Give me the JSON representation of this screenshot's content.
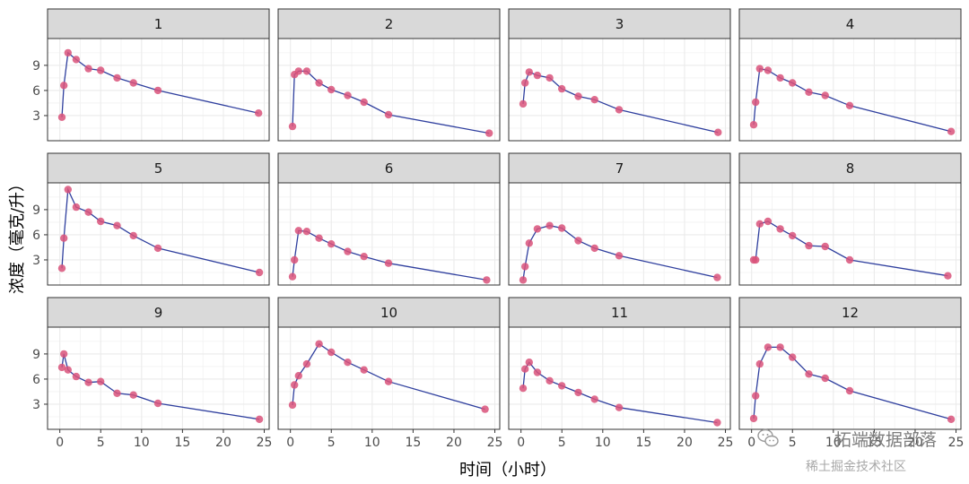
{
  "chart_data": {
    "type": "line",
    "facet_layout": {
      "rows": 3,
      "cols": 4
    },
    "xlabel": "时间（小时）",
    "ylabel": "浓度（毫克/升）",
    "xticks": [
      0,
      5,
      10,
      15,
      20,
      25
    ],
    "yticks": [
      3,
      6,
      9
    ],
    "xlim": [
      -1.5,
      25.6
    ],
    "ylim": [
      0,
      12.2
    ],
    "grid": true,
    "colors": {
      "line": "#2f3f9e",
      "point": "#d9527a",
      "strip_bg": "#d9d9d9",
      "border": "#333333",
      "grid": "#ebebeb"
    },
    "panels": [
      {
        "label": "1",
        "x": [
          0.25,
          0.5,
          1,
          2,
          3.5,
          5,
          7,
          9,
          12,
          24.3
        ],
        "y": [
          2.8,
          6.6,
          10.5,
          9.7,
          8.6,
          8.4,
          7.5,
          6.9,
          6.0,
          3.3
        ]
      },
      {
        "label": "2",
        "x": [
          0.25,
          0.5,
          1,
          2,
          3.5,
          5,
          7,
          9,
          12,
          24.3
        ],
        "y": [
          1.7,
          7.9,
          8.3,
          8.3,
          6.9,
          6.1,
          5.4,
          4.6,
          3.1,
          0.9
        ]
      },
      {
        "label": "3",
        "x": [
          0.25,
          0.5,
          1,
          2,
          3.5,
          5,
          7,
          9,
          12,
          24.1
        ],
        "y": [
          4.4,
          6.9,
          8.2,
          7.8,
          7.5,
          6.2,
          5.3,
          4.9,
          3.7,
          1.0
        ]
      },
      {
        "label": "4",
        "x": [
          0.25,
          0.5,
          1,
          2,
          3.5,
          5,
          7,
          9,
          12,
          24.4
        ],
        "y": [
          1.9,
          4.6,
          8.6,
          8.4,
          7.5,
          6.9,
          5.8,
          5.4,
          4.2,
          1.1
        ]
      },
      {
        "label": "5",
        "x": [
          0.25,
          0.5,
          1,
          2,
          3.5,
          5,
          7,
          9,
          12,
          24.4
        ],
        "y": [
          2.0,
          5.6,
          11.4,
          9.3,
          8.7,
          7.6,
          7.1,
          5.9,
          4.4,
          1.5
        ]
      },
      {
        "label": "6",
        "x": [
          0.25,
          0.5,
          1,
          2,
          3.5,
          5,
          7,
          9,
          12,
          24
        ],
        "y": [
          1.0,
          3.0,
          6.5,
          6.4,
          5.6,
          4.9,
          4.0,
          3.4,
          2.6,
          0.6
        ]
      },
      {
        "label": "7",
        "x": [
          0.25,
          0.5,
          1,
          2,
          3.5,
          5,
          7,
          9,
          12,
          24
        ],
        "y": [
          0.6,
          2.2,
          5.0,
          6.7,
          7.1,
          6.8,
          5.3,
          4.4,
          3.5,
          0.9
        ]
      },
      {
        "label": "8",
        "x": [
          0.25,
          0.5,
          1,
          2,
          3.5,
          5,
          7,
          9,
          12,
          24
        ],
        "y": [
          3.0,
          3.0,
          7.3,
          7.6,
          6.7,
          5.9,
          4.7,
          4.6,
          3.0,
          1.1
        ]
      },
      {
        "label": "9",
        "x": [
          0.25,
          0.5,
          1,
          2,
          3.5,
          5,
          7,
          9,
          12,
          24.4
        ],
        "y": [
          7.4,
          9.0,
          7.1,
          6.3,
          5.6,
          5.7,
          4.3,
          4.1,
          3.1,
          1.2
        ]
      },
      {
        "label": "10",
        "x": [
          0.25,
          0.5,
          1,
          2,
          3.5,
          5,
          7,
          9,
          12,
          23.8
        ],
        "y": [
          2.9,
          5.3,
          6.4,
          7.8,
          10.2,
          9.2,
          8.0,
          7.1,
          5.7,
          2.4
        ]
      },
      {
        "label": "11",
        "x": [
          0.25,
          0.5,
          1,
          2,
          3.5,
          5,
          7,
          9,
          12,
          24
        ],
        "y": [
          4.9,
          7.2,
          8.0,
          6.8,
          5.8,
          5.2,
          4.4,
          3.6,
          2.6,
          0.8
        ]
      },
      {
        "label": "12",
        "x": [
          0.25,
          0.5,
          1,
          2,
          3.5,
          5,
          7,
          9,
          12,
          24.4
        ],
        "y": [
          1.3,
          4.0,
          7.8,
          9.8,
          9.8,
          8.6,
          6.6,
          6.1,
          4.6,
          1.2
        ]
      }
    ]
  },
  "watermark": {
    "line1": "拓端数据部落",
    "line2": "稀土掘金技术社区"
  }
}
